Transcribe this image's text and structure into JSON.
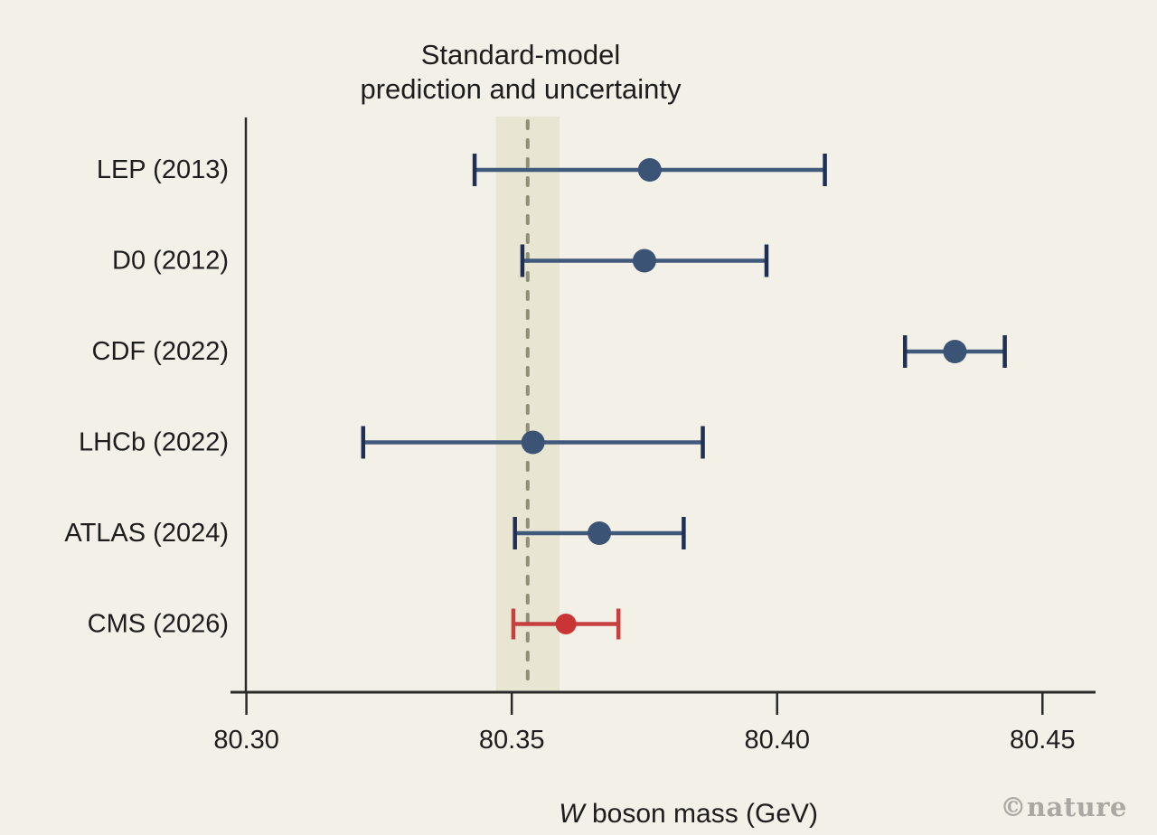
{
  "figure": {
    "background": "#f3f0e7",
    "text_color": "#1d1d1d",
    "axis_color": "#2a2a2a",
    "watermark": "©nature"
  },
  "chart_data": {
    "type": "scatter",
    "subtype": "horizontal-errorbar",
    "title_lines": [
      "Standard-model",
      "prediction and uncertainty"
    ],
    "xlabel_prefix": "W",
    "xlabel_suffix": " boson mass (GeV)",
    "xlim": [
      80.297,
      80.46
    ],
    "x_ticks": [
      80.3,
      80.35,
      80.4,
      80.45
    ],
    "x_tick_labels": [
      "80.30",
      "80.35",
      "80.40",
      "80.45"
    ],
    "grid": false,
    "legend": false,
    "sm_prediction": {
      "value": 80.353,
      "uncertainty": 0.006,
      "band_color": "#e8e6d2",
      "line_color": "#8f8e77"
    },
    "styles": {
      "default": {
        "point": "#3b5475",
        "line": "#41597b",
        "cap": "#1e3055",
        "point_radius": 13,
        "cap_half_height": 18
      },
      "highlight": {
        "point": "#c93534",
        "line": "#c64040",
        "cap": "#c64040",
        "point_radius": 11.5,
        "cap_half_height": 17
      }
    },
    "series": [
      {
        "label": "LEP (2013)",
        "value": 80.376,
        "error": 0.033,
        "style": "default"
      },
      {
        "label": "D0 (2012)",
        "value": 80.375,
        "error": 0.023,
        "style": "default"
      },
      {
        "label": "CDF (2022)",
        "value": 80.4335,
        "error": 0.0094,
        "style": "default"
      },
      {
        "label": "LHCb (2022)",
        "value": 80.354,
        "error": 0.032,
        "style": "default"
      },
      {
        "label": "ATLAS (2024)",
        "value": 80.3665,
        "error": 0.0159,
        "style": "default"
      },
      {
        "label": "CMS (2026)",
        "value": 80.3602,
        "error": 0.0099,
        "style": "highlight"
      }
    ]
  }
}
